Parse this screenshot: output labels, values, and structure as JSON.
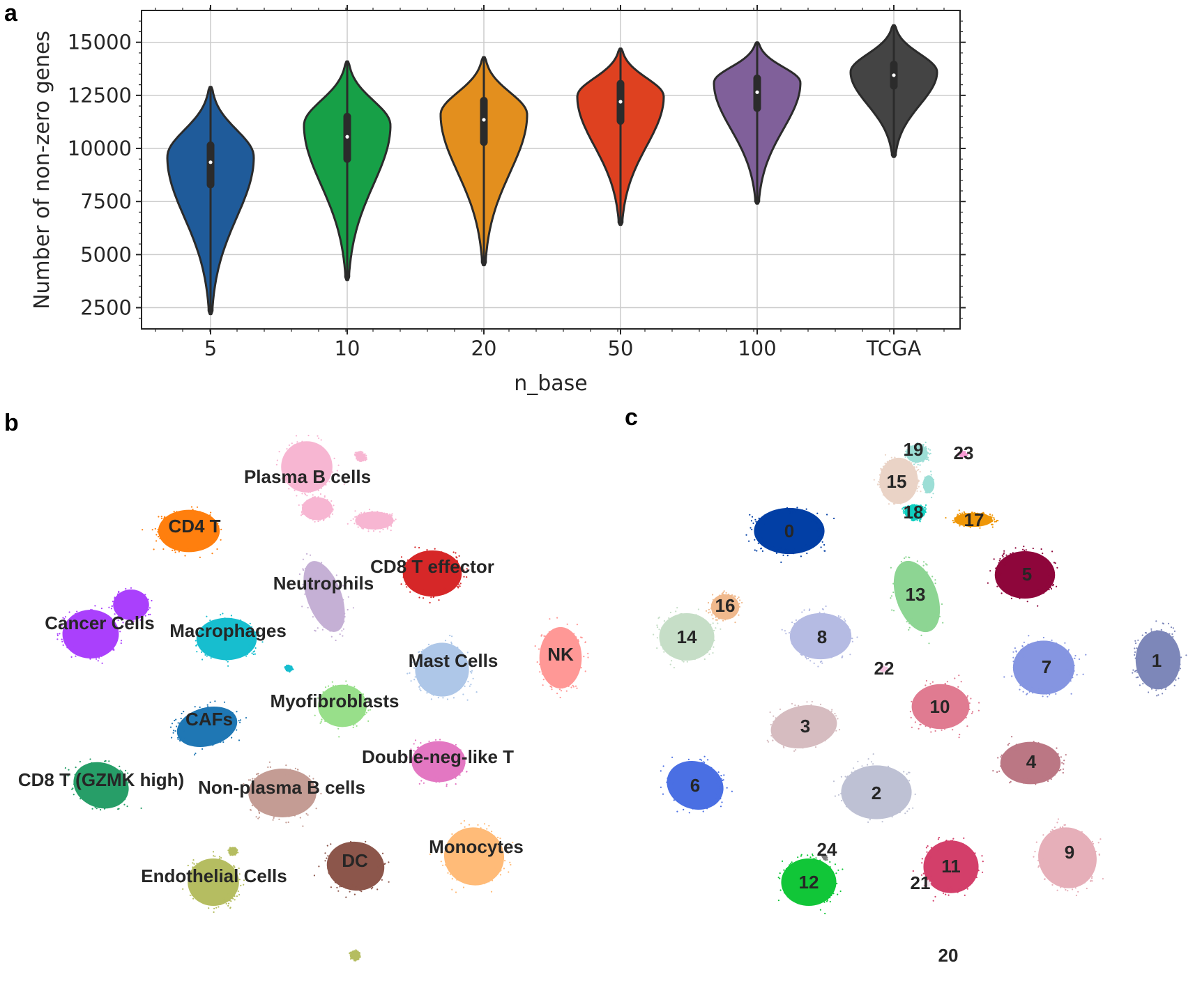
{
  "panels": {
    "a": "a",
    "b": "b",
    "c": "c"
  },
  "chart_data": [
    {
      "type": "violin",
      "panel": "a",
      "xlabel": "n_base",
      "ylabel": "Number of non-zero genes",
      "ylim": [
        1500,
        16500
      ],
      "yticks": [
        2500,
        5000,
        7500,
        10000,
        12500,
        15000
      ],
      "grid": true,
      "categories": [
        "5",
        "10",
        "20",
        "50",
        "100",
        "TCGA"
      ],
      "colors": [
        "#1f5b9a",
        "#17a047",
        "#e38f1e",
        "#de4120",
        "#80609a",
        "#444444"
      ],
      "median": [
        9350,
        10550,
        11350,
        12200,
        12650,
        13450
      ],
      "q1": [
        8300,
        9500,
        10300,
        11300,
        11900,
        12950
      ],
      "q3": [
        10150,
        11500,
        12250,
        13050,
        13300,
        13950
      ],
      "min": [
        2200,
        3800,
        4500,
        6400,
        7400,
        9600
      ],
      "max": [
        12900,
        14100,
        14300,
        14700,
        15000,
        15800
      ],
      "mode": [
        9600,
        11100,
        11600,
        12450,
        13100,
        13600
      ]
    },
    {
      "type": "scatter",
      "panel": "b",
      "subtype": "umap",
      "clusters": [
        {
          "name": "Plasma B cells",
          "color": "#f7b6d2"
        },
        {
          "name": "CD4 T",
          "color": "#ff7f0e"
        },
        {
          "name": "CD8 T effector",
          "color": "#d62728"
        },
        {
          "name": "Neutrophils",
          "color": "#c5b0d5"
        },
        {
          "name": "Cancer Cells",
          "color": "#aa40fc"
        },
        {
          "name": "Macrophages",
          "color": "#17becf"
        },
        {
          "name": "Mast Cells",
          "color": "#aec7e8"
        },
        {
          "name": "NK",
          "color": "#ff9896"
        },
        {
          "name": "Myofibroblasts",
          "color": "#98df8a"
        },
        {
          "name": "CAFs",
          "color": "#1f77b4"
        },
        {
          "name": "Double-neg-like T",
          "color": "#e377c2"
        },
        {
          "name": "CD8 T (GZMK high)",
          "color": "#279e68"
        },
        {
          "name": "Non-plasma B cells",
          "color": "#c49c94"
        },
        {
          "name": "Monocytes",
          "color": "#ffbb78"
        },
        {
          "name": "DC",
          "color": "#8c564b"
        },
        {
          "name": "Endothelial Cells",
          "color": "#b5bd61"
        }
      ]
    },
    {
      "type": "scatter",
      "panel": "c",
      "subtype": "umap",
      "clusters": [
        {
          "name": "0",
          "color": "#023fa5"
        },
        {
          "name": "1",
          "color": "#7d87b9"
        },
        {
          "name": "2",
          "color": "#bec1d4"
        },
        {
          "name": "3",
          "color": "#d6bcc0"
        },
        {
          "name": "4",
          "color": "#bb7784"
        },
        {
          "name": "5",
          "color": "#8e063b"
        },
        {
          "name": "6",
          "color": "#4a6fe3"
        },
        {
          "name": "7",
          "color": "#8595e1"
        },
        {
          "name": "8",
          "color": "#b5bbe3"
        },
        {
          "name": "9",
          "color": "#e6afb9"
        },
        {
          "name": "10",
          "color": "#e07b91"
        },
        {
          "name": "11",
          "color": "#d33f6a"
        },
        {
          "name": "12",
          "color": "#11c638"
        },
        {
          "name": "13",
          "color": "#8dd593"
        },
        {
          "name": "14",
          "color": "#c6dec7"
        },
        {
          "name": "15",
          "color": "#ead3c6"
        },
        {
          "name": "16",
          "color": "#f0b98d"
        },
        {
          "name": "17",
          "color": "#ef9708"
        },
        {
          "name": "18",
          "color": "#0fcfc0"
        },
        {
          "name": "19",
          "color": "#9cded6"
        },
        {
          "name": "20",
          "color": "#d5eae7"
        },
        {
          "name": "21",
          "color": "#f3e1eb"
        },
        {
          "name": "22",
          "color": "#f6c4e1"
        },
        {
          "name": "23",
          "color": "#f79cd4"
        },
        {
          "name": "24",
          "color": "#7f7f7f"
        }
      ]
    }
  ]
}
